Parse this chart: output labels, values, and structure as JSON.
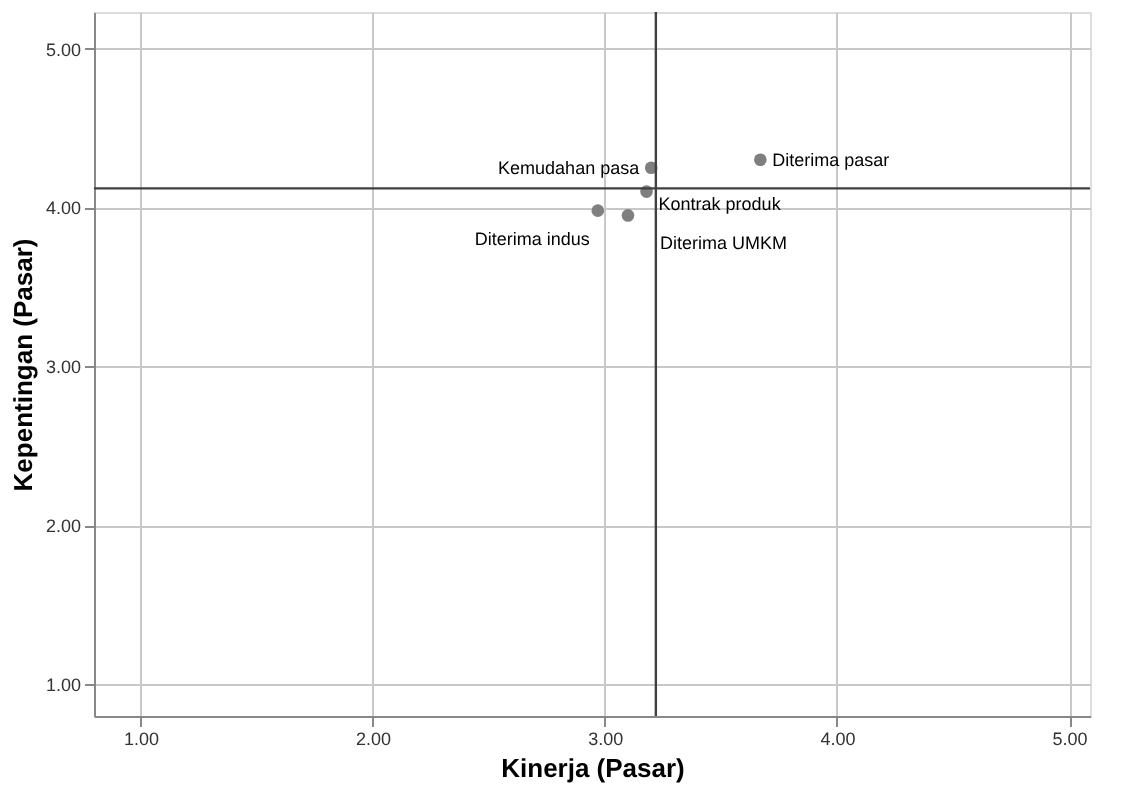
{
  "chart_data": {
    "type": "scatter",
    "xlabel": "Kinerja (Pasar)",
    "ylabel": "Kepentingan (Pasar)",
    "x": [
      3.2,
      3.67,
      3.18,
      2.97,
      3.1
    ],
    "series": [
      {
        "color": "#7f7f7f",
        "values": [
          4.25,
          4.3,
          4.1,
          3.98,
          3.95
        ]
      }
    ],
    "annotations": [
      {
        "text": "Kemudahan pasa",
        "x": 3.2,
        "y": 4.25
      },
      {
        "text": "Diterima pasar",
        "x": 3.67,
        "y": 4.3
      },
      {
        "text": "Kontrak produk",
        "x": 3.18,
        "y": 4.1
      },
      {
        "text": "Diterima indus",
        "x": 2.97,
        "y": 3.98
      },
      {
        "text": "Diterima UMKM",
        "x": 3.1,
        "y": 3.95
      }
    ],
    "ref_lines": [
      {
        "axis": "x",
        "value": 3.22,
        "color": "#404040"
      },
      {
        "axis": "y",
        "value": 4.12,
        "color": "#404040"
      }
    ],
    "xlim": [
      0.8,
      5.09
    ],
    "ylim": [
      0.8,
      5.23
    ],
    "xticks": [
      {
        "value": 1,
        "label": "1.00"
      },
      {
        "value": 2,
        "label": "2.00"
      },
      {
        "value": 3,
        "label": "3.00"
      },
      {
        "value": 4,
        "label": "4.00"
      },
      {
        "value": 5,
        "label": "5.00"
      }
    ],
    "yticks": [
      {
        "value": 1,
        "label": "1.00"
      },
      {
        "value": 2,
        "label": "2.00"
      },
      {
        "value": 3,
        "label": "3.00"
      },
      {
        "value": 4,
        "label": "4.00"
      },
      {
        "value": 5,
        "label": "5.00"
      }
    ],
    "grid": true,
    "marker": "circle"
  }
}
